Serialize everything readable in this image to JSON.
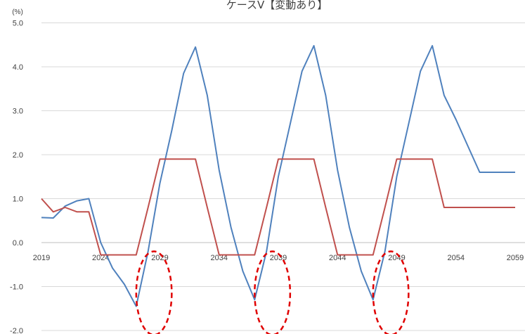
{
  "chart_data": {
    "type": "line",
    "title": "ケースⅤ【変動あり】",
    "y_unit": "(%)",
    "xlabel": "",
    "ylabel": "",
    "xlim": [
      2019,
      2059
    ],
    "ylim": [
      -2.0,
      5.0
    ],
    "y_ticks": [
      "5.0",
      "4.0",
      "3.0",
      "2.0",
      "1.0",
      "0.0",
      "-1.0",
      "-2.0"
    ],
    "x_ticks": [
      "2019",
      "2024",
      "2029",
      "2034",
      "2039",
      "2044",
      "2049",
      "2054",
      "2059"
    ],
    "grid": "horizontal",
    "colors": {
      "blue": "#4f81bd",
      "red": "#c0504d",
      "annotation": "#e00000",
      "grid": "#d9d9d9"
    },
    "series": [
      {
        "color": "#4f81bd",
        "x": [
          2019,
          2020,
          2021,
          2022,
          2023,
          2024,
          2025,
          2026,
          2027,
          2028,
          2029,
          2030,
          2031,
          2032,
          2033,
          2034,
          2035,
          2036,
          2037,
          2038,
          2039,
          2040,
          2041,
          2042,
          2043,
          2044,
          2045,
          2046,
          2047,
          2048,
          2049,
          2050,
          2051,
          2052,
          2053,
          2054,
          2055,
          2056,
          2057,
          2058,
          2059
        ],
        "values": [
          0.57,
          0.56,
          0.83,
          0.95,
          1.0,
          0.0,
          -0.58,
          -0.95,
          -1.45,
          -0.2,
          1.35,
          2.55,
          3.85,
          4.45,
          3.35,
          1.65,
          0.35,
          -0.65,
          -1.3,
          -0.2,
          1.5,
          2.7,
          3.9,
          4.48,
          3.35,
          1.65,
          0.35,
          -0.65,
          -1.3,
          -0.2,
          1.5,
          2.7,
          3.9,
          4.48,
          3.35,
          2.8,
          2.2,
          1.6,
          1.6,
          1.6,
          1.6
        ]
      },
      {
        "color": "#c0504d",
        "x": [
          2019,
          2020,
          2021,
          2022,
          2023,
          2024,
          2025,
          2026,
          2027,
          2028,
          2029,
          2030,
          2031,
          2032,
          2033,
          2034,
          2035,
          2036,
          2037,
          2038,
          2039,
          2040,
          2041,
          2042,
          2043,
          2044,
          2045,
          2046,
          2047,
          2048,
          2049,
          2050,
          2051,
          2052,
          2053,
          2054,
          2055,
          2056,
          2057,
          2058,
          2059
        ],
        "values": [
          1.0,
          0.7,
          0.8,
          0.7,
          0.7,
          -0.28,
          -0.28,
          -0.28,
          -0.28,
          0.8,
          1.9,
          1.9,
          1.9,
          1.9,
          0.8,
          -0.28,
          -0.28,
          -0.28,
          -0.28,
          0.8,
          1.9,
          1.9,
          1.9,
          1.9,
          0.8,
          -0.28,
          -0.28,
          -0.28,
          -0.28,
          0.8,
          1.9,
          1.9,
          1.9,
          1.9,
          0.8,
          0.8,
          0.8,
          0.8,
          0.8,
          0.8,
          0.8
        ]
      }
    ],
    "annotations": [
      {
        "type": "dashed-ellipse",
        "x": 2028.5,
        "y": -1.15,
        "rx_years": 1.5,
        "ry": 0.95
      },
      {
        "type": "dashed-ellipse",
        "x": 2038.5,
        "y": -1.15,
        "rx_years": 1.5,
        "ry": 0.95
      },
      {
        "type": "dashed-ellipse",
        "x": 2048.5,
        "y": -1.15,
        "rx_years": 1.5,
        "ry": 0.95
      }
    ]
  }
}
